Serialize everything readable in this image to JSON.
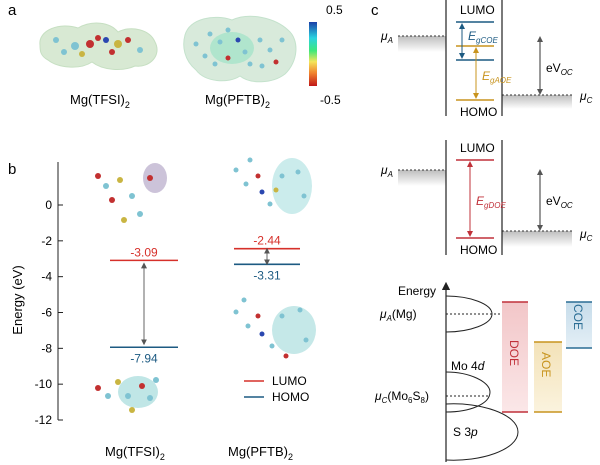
{
  "panel_a": {
    "label": "a",
    "mol1_caption": "Mg(TFSI)",
    "mol1_sub": "2",
    "mol2_caption": "Mg(PFTB)",
    "mol2_sub": "2",
    "colorbar_max": "0.5",
    "colorbar_min": "-0.5",
    "colorbar_colors": [
      "#1a3fa8",
      "#2bd3e0",
      "#3fe87a",
      "#f4e55a",
      "#f0822e",
      "#c01818"
    ]
  },
  "panel_b": {
    "label": "b",
    "ylabel": "Energy (eV)",
    "yticks": [
      "0",
      "-2",
      "-4",
      "-6",
      "-8",
      "-10",
      "-12"
    ],
    "tfsi_lumo": "-3.09",
    "tfsi_homo": "-7.94",
    "pftb_lumo": "-2.44",
    "pftb_homo": "-3.31",
    "legend_lumo": "LUMO",
    "legend_homo": "HOMO",
    "xlabel1": "Mg(TFSI)",
    "xlabel1_sub": "2",
    "xlabel2": "Mg(PFTB)",
    "xlabel2_sub": "2",
    "lumo_color": "#d6302a",
    "homo_color": "#1c5a82"
  },
  "panel_c": {
    "label": "c",
    "top": {
      "lumo": "LUMO",
      "homo": "HOMO",
      "mu_a": "μ",
      "mu_a_sub": "A",
      "mu_c": "μ",
      "mu_c_sub": "C",
      "egcoe": "E",
      "egcoe_sub": "gCOE",
      "egaoe": "E",
      "egaoe_sub": "gAOE",
      "evoc": "eV",
      "evoc_sub": "OC"
    },
    "middle": {
      "lumo": "LUMO",
      "homo": "HOMO",
      "mu_a": "μ",
      "mu_a_sub": "A",
      "mu_c": "μ",
      "mu_c_sub": "C",
      "egdoe": "E",
      "egdoe_sub": "gDOE",
      "evoc": "eV",
      "evoc_sub": "OC"
    },
    "bottom": {
      "energy": "Energy",
      "mua_mg": "μ",
      "mua_mg_sub": "A",
      "mua_mg_tail": "(Mg)",
      "muc": "μ",
      "muc_sub": "C",
      "muc_tail1": "(Mo",
      "muc_sub6": "6",
      "muc_s": "S",
      "muc_sub8": "8",
      "muc_tail2": ")",
      "mo4d": "Mo 4",
      "mo4d_italic": "d",
      "s3p": "S 3",
      "s3p_italic": "p",
      "doe": "DOE",
      "aoe": "AOE",
      "coe": "COE",
      "doe_color": "#c0313a",
      "aoe_color": "#c8941e",
      "coe_color": "#2a6d94"
    }
  }
}
